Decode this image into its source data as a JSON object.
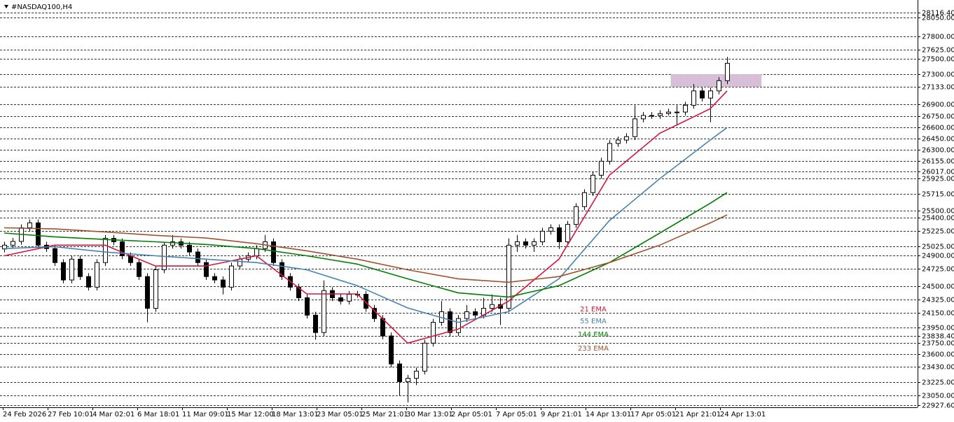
{
  "chart_data": {
    "type": "candlestick",
    "title": "#NASDAQ100,H4",
    "categories": [
      "24 Feb 2026",
      "27 Feb 10:01",
      "4 Mar 02:01",
      "6 Mar 18:01",
      "11 Mar 09:01",
      "15 Mar 12:00",
      "18 Mar 13:01",
      "23 Mar 05:01",
      "25 Mar 21:01",
      "30 Mar 13:01",
      "2 Apr 05:01",
      "7 Apr 05:01",
      "9 Apr 21:01",
      "14 Apr 13:01",
      "17 Apr 05:01",
      "21 Apr 21:01",
      "24 Apr 13:01"
    ],
    "candles": {
      "open": [
        24990,
        25040,
        25090,
        25270,
        25335,
        25040,
        24995,
        24810,
        24580,
        24855,
        24625,
        24485,
        24810,
        25130,
        25085,
        24900,
        24810,
        24625,
        24205,
        24715,
        25040,
        25085,
        25040,
        24950,
        24810,
        24625,
        24580,
        24485,
        24765,
        24855,
        24900,
        24995,
        25085,
        24810,
        24625,
        24485,
        24345,
        24115,
        23885,
        24440,
        24345,
        24300,
        24390,
        24390,
        24205,
        24070,
        23840,
        23470,
        23235,
        23280,
        23375,
        23745,
        24020,
        24160,
        23885,
        24070,
        24160,
        24115,
        24205,
        24255,
        24205,
        25040,
        25085,
        25040,
        25085,
        25225,
        25270,
        25085,
        25315,
        25550,
        25735,
        25965,
        26150,
        26385,
        26430,
        26475,
        26710,
        26755,
        26755,
        26780,
        26800,
        26800,
        26890,
        27080,
        26985,
        27080,
        27215
      ],
      "high": [
        25085,
        25135,
        25315,
        25380,
        25380,
        25085,
        25040,
        24855,
        24900,
        24900,
        24670,
        24855,
        25175,
        25175,
        25130,
        24945,
        24855,
        24670,
        24760,
        25085,
        25175,
        25130,
        25085,
        24995,
        24855,
        24670,
        24625,
        24810,
        24900,
        24945,
        25040,
        25175,
        25130,
        24855,
        24670,
        24530,
        24390,
        24160,
        24575,
        24485,
        24390,
        24435,
        24435,
        24435,
        24250,
        24115,
        23885,
        23515,
        23325,
        23420,
        23790,
        24065,
        24300,
        24205,
        24115,
        24250,
        24205,
        24345,
        24390,
        24345,
        25130,
        25175,
        25130,
        25130,
        25270,
        25315,
        25315,
        25360,
        25595,
        25780,
        26010,
        26195,
        26430,
        26475,
        26520,
        26890,
        26800,
        26800,
        26825,
        26845,
        26890,
        26935,
        27170,
        27125,
        27125,
        27260,
        27530
      ],
      "low": [
        24945,
        24995,
        25045,
        25225,
        24995,
        24950,
        24765,
        24535,
        24535,
        24580,
        24440,
        24440,
        24765,
        25040,
        24855,
        24765,
        24580,
        24020,
        24160,
        24670,
        24995,
        24995,
        24905,
        24765,
        24580,
        24535,
        24390,
        24440,
        24720,
        24810,
        24855,
        24950,
        24765,
        24580,
        24440,
        24300,
        24070,
        23790,
        23840,
        24300,
        24255,
        24255,
        24345,
        24160,
        24025,
        23795,
        23425,
        23050,
        22960,
        23190,
        23330,
        23700,
        23975,
        23830,
        23840,
        24025,
        24070,
        24070,
        24160,
        23985,
        24160,
        24950,
        24995,
        24950,
        25040,
        25180,
        24990,
        25040,
        25270,
        25505,
        25690,
        25920,
        26105,
        26340,
        26385,
        26430,
        26665,
        26710,
        26710,
        26755,
        26620,
        26755,
        26845,
        26940,
        26665,
        27035,
        27170
      ],
      "close": [
        25040,
        25090,
        25270,
        25335,
        25040,
        24995,
        24810,
        24580,
        24855,
        24625,
        24485,
        24810,
        25130,
        25085,
        24900,
        24810,
        24625,
        24205,
        24715,
        25040,
        25085,
        25040,
        24950,
        24810,
        24625,
        24580,
        24485,
        24765,
        24855,
        24900,
        24995,
        25085,
        24810,
        24625,
        24485,
        24345,
        24115,
        23885,
        24440,
        24345,
        24300,
        24390,
        24390,
        24205,
        24070,
        23840,
        23470,
        23235,
        23280,
        23375,
        23745,
        24020,
        24160,
        23885,
        24070,
        24160,
        24115,
        24205,
        24255,
        24205,
        25040,
        25085,
        25040,
        25085,
        25225,
        25270,
        25085,
        25315,
        25550,
        25735,
        25965,
        26150,
        26385,
        26430,
        26475,
        26710,
        26755,
        26755,
        26780,
        26800,
        26800,
        26890,
        27080,
        26985,
        27080,
        27215,
        27445
      ]
    },
    "series": [
      {
        "name": "21 EMA",
        "color": "#dc143c",
        "x": [
          0,
          6,
          12,
          18,
          24,
          30,
          36,
          42,
          48,
          54,
          60,
          66,
          72,
          78,
          84,
          86
        ],
        "values": [
          24900,
          25040,
          25040,
          24765,
          24765,
          24900,
          24395,
          24395,
          23745,
          23930,
          24300,
          24855,
          25965,
          26520,
          26845,
          27080
        ]
      },
      {
        "name": "55 EMA",
        "color": "#4682b4",
        "x": [
          0,
          6,
          12,
          18,
          24,
          30,
          36,
          42,
          48,
          54,
          60,
          66,
          72,
          78,
          84,
          86
        ],
        "values": [
          24995,
          25020,
          24950,
          24900,
          24855,
          24810,
          24715,
          24505,
          24210,
          24020,
          24160,
          24595,
          25365,
          25920,
          26430,
          26595
        ]
      },
      {
        "name": "144 EMA",
        "color": "#008000",
        "x": [
          0,
          6,
          12,
          18,
          24,
          30,
          36,
          42,
          48,
          54,
          60,
          66,
          72,
          78,
          84,
          86
        ],
        "values": [
          25200,
          25150,
          25115,
          25085,
          25050,
          24995,
          24900,
          24790,
          24595,
          24410,
          24355,
          24505,
          24810,
          25200,
          25595,
          25735
        ]
      },
      {
        "name": "233 EMA",
        "color": "#a0522d",
        "x": [
          0,
          6,
          12,
          18,
          24,
          30,
          36,
          42,
          48,
          54,
          60,
          66,
          72,
          78,
          84,
          86
        ],
        "values": [
          25270,
          25255,
          25215,
          25170,
          25135,
          25060,
          24965,
          24855,
          24715,
          24595,
          24550,
          24625,
          24810,
          25040,
          25335,
          25440
        ]
      }
    ],
    "zone": {
      "x": [
        79.3,
        90.1
      ],
      "y": [
        27133,
        27300
      ],
      "color": "#d8bfd8"
    },
    "ylim": [
      22915,
      28263
    ],
    "yticks": [
      {
        "value": 28116.4,
        "label": "28116.40"
      },
      {
        "value": 28050,
        "label": "28050.00"
      },
      {
        "value": 27800,
        "label": "27800.00"
      },
      {
        "value": 27625,
        "label": "27625.00"
      },
      {
        "value": 27500,
        "label": "27500.00"
      },
      {
        "value": 27300,
        "label": "27300.00"
      },
      {
        "value": 27133,
        "label": "27133.00"
      },
      {
        "value": 26900,
        "label": "26900.00"
      },
      {
        "value": 26750,
        "label": "26750.00"
      },
      {
        "value": 26600,
        "label": "26600.00"
      },
      {
        "value": 26450,
        "label": "26450.00"
      },
      {
        "value": 26300,
        "label": "26300.00"
      },
      {
        "value": 26155,
        "label": "26155.00"
      },
      {
        "value": 26017,
        "label": "26017.00"
      },
      {
        "value": 25925,
        "label": "25925.00"
      },
      {
        "value": 25715,
        "label": "25715.00"
      },
      {
        "value": 25500,
        "label": "25500.00"
      },
      {
        "value": 25400,
        "label": "25400.00"
      },
      {
        "value": 25225,
        "label": "25225.00"
      },
      {
        "value": 25025,
        "label": "25025.00"
      },
      {
        "value": 24900,
        "label": "24900.00"
      },
      {
        "value": 24725,
        "label": "24725.00"
      },
      {
        "value": 24500,
        "label": "24500.00"
      },
      {
        "value": 24325,
        "label": "24325.00"
      },
      {
        "value": 24150,
        "label": "24150.00"
      },
      {
        "value": 23950,
        "label": "23950.00"
      },
      {
        "value": 23838.4,
        "label": "23838.40"
      },
      {
        "value": 23750,
        "label": "23750.00"
      },
      {
        "value": 23600,
        "label": "23600.00"
      },
      {
        "value": 23430,
        "label": "23430.00"
      },
      {
        "value": 23225,
        "label": "23225.00"
      },
      {
        "value": 23050,
        "label": "23050.00"
      },
      {
        "value": 22927.6,
        "label": "22927.60"
      }
    ],
    "grid": true
  }
}
